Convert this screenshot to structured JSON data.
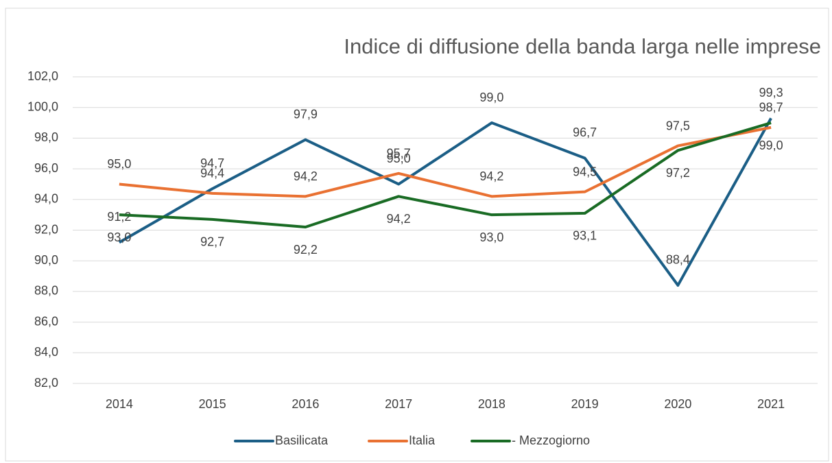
{
  "chart_data": {
    "type": "line",
    "title": "Indice di diffusione della banda larga nelle imprese",
    "categories": [
      "2014",
      "2015",
      "2016",
      "2017",
      "2018",
      "2019",
      "2020",
      "2021"
    ],
    "series": [
      {
        "name": "Basilicata",
        "color": "#1b5e86",
        "values": [
          91.2,
          94.7,
          97.9,
          95.0,
          99.0,
          96.7,
          88.4,
          99.3
        ],
        "value_labels": [
          "91,2",
          "94,7",
          "97,9",
          "95,0",
          "99,0",
          "96,7",
          "88,4",
          "99,3"
        ]
      },
      {
        "name": "Italia",
        "color": "#e97132",
        "values": [
          95.0,
          94.4,
          94.2,
          95.7,
          94.2,
          94.5,
          97.5,
          98.7
        ],
        "value_labels": [
          "95,0",
          "94,4",
          "94,2",
          "95,7",
          "94,2",
          "94,5",
          "97,5",
          "98,7"
        ]
      },
      {
        "name": "- Mezzogiorno",
        "color": "#196b24",
        "values": [
          93.0,
          92.7,
          92.2,
          94.2,
          93.0,
          93.1,
          97.2,
          99.0
        ],
        "value_labels": [
          "93,0",
          "92,7",
          "92,2",
          "94,2",
          "93,0",
          "93,1",
          "97,2",
          "99,0"
        ]
      }
    ],
    "ylim": [
      82,
      102
    ],
    "yticks": [
      {
        "value": 82,
        "label": "82,0"
      },
      {
        "value": 84,
        "label": "84,0"
      },
      {
        "value": 86,
        "label": "86,0"
      },
      {
        "value": 88,
        "label": "88,0"
      },
      {
        "value": 90,
        "label": "90,0"
      },
      {
        "value": 92,
        "label": "92,0"
      },
      {
        "value": 94,
        "label": "94,0"
      },
      {
        "value": 96,
        "label": "96,0"
      },
      {
        "value": 98,
        "label": "98,0"
      },
      {
        "value": 100,
        "label": "100,0"
      },
      {
        "value": 102,
        "label": "102,0"
      }
    ],
    "grid": true,
    "legend": "bottom"
  }
}
